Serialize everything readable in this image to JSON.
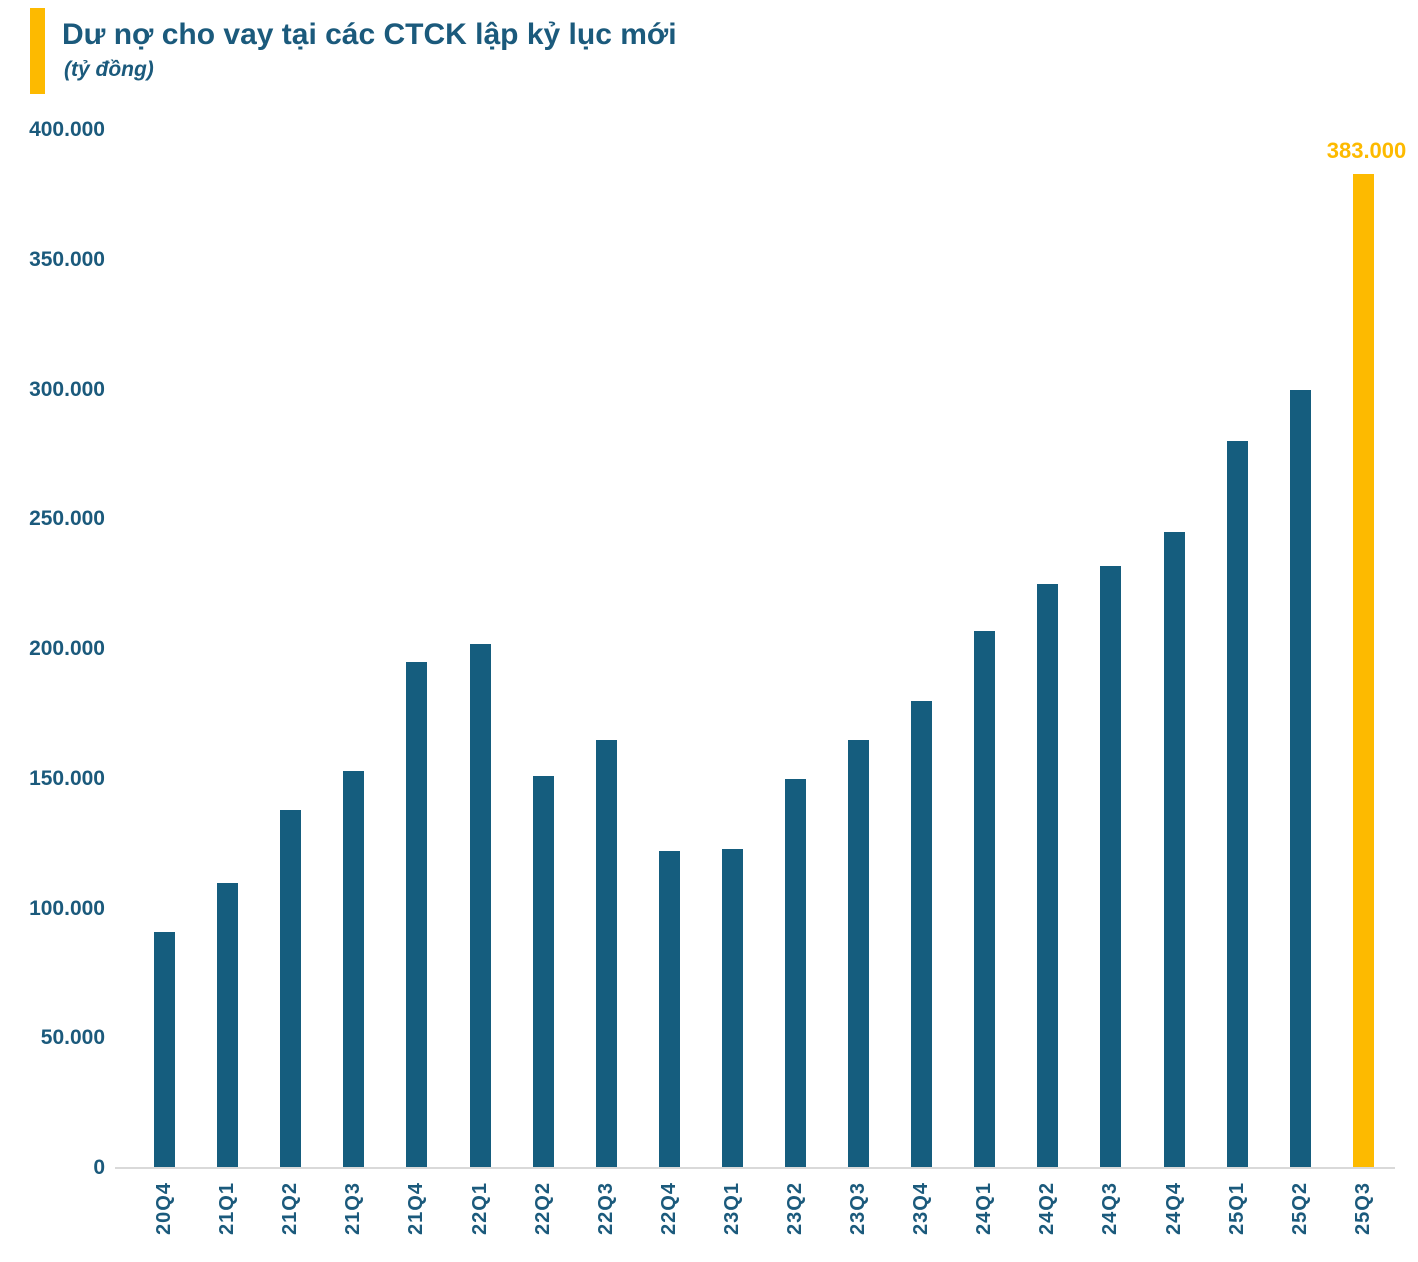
{
  "header": {
    "title": "Dư nợ cho vay tại các CTCK lập kỷ lục mới",
    "subtitle": "(tỷ đồng)"
  },
  "colors": {
    "bar": "#155d7e",
    "highlight": "#fdba00",
    "text": "#1b5a7c",
    "axis_line": "#d9d9d9"
  },
  "chart_data": {
    "type": "bar",
    "title": "Dư nợ cho vay tại các CTCK lập kỷ lục mới",
    "unit_label": "(tỷ đồng)",
    "categories": [
      "20Q4",
      "21Q1",
      "21Q2",
      "21Q3",
      "21Q4",
      "22Q1",
      "22Q2",
      "22Q3",
      "22Q4",
      "23Q1",
      "23Q2",
      "23Q3",
      "23Q4",
      "24Q1",
      "24Q2",
      "24Q3",
      "24Q4",
      "25Q1",
      "25Q2",
      "25Q3"
    ],
    "values": [
      91000,
      110000,
      138000,
      153000,
      195000,
      202000,
      151000,
      165000,
      122000,
      123000,
      150000,
      165000,
      180000,
      207000,
      225000,
      232000,
      245000,
      280000,
      300000,
      383000
    ],
    "highlight_index": 19,
    "data_label": {
      "index": 19,
      "text": "383.000"
    },
    "ylim": [
      0,
      400000
    ],
    "ytick_values": [
      400000,
      350000,
      300000,
      250000,
      200000,
      150000,
      100000,
      50000,
      0
    ],
    "ytick_labels": [
      "400.000",
      "350.000",
      "300.000",
      "250.000",
      "200.000",
      "150.000",
      "100.000",
      "50.000",
      "0"
    ],
    "grid": false,
    "legend": false,
    "xlabel": "",
    "ylabel": ""
  }
}
